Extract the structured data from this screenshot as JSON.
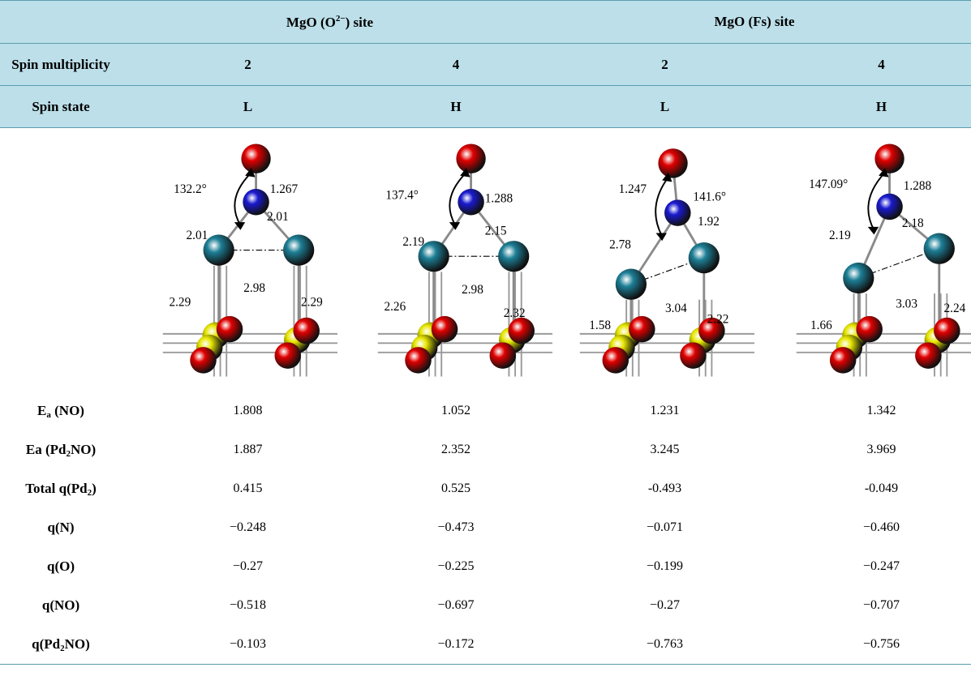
{
  "header": {
    "site_o2_prefix": "MgO (O",
    "site_o2_sup": "2−",
    "site_o2_suffix": ") site",
    "site_fs": "MgO (Fs) site",
    "spin_mult_label": "Spin multiplicity",
    "spin_mult": [
      "2",
      "4",
      "2",
      "4"
    ],
    "spin_state_label": "Spin state",
    "spin_state": [
      "L",
      "H",
      "L",
      "H"
    ]
  },
  "structures": [
    {
      "angle": "132.2°",
      "no_bond": "1.267",
      "pd_n_left": "2.01",
      "pd_n_right": "2.01",
      "pd_pd": "2.98",
      "pd_sub_left": "2.29",
      "pd_sub_right": "2.29"
    },
    {
      "angle": "137.4°",
      "no_bond": "1.288",
      "pd_n_left": "2.19",
      "pd_n_right": "2.15",
      "pd_pd": "2.98",
      "pd_sub_left": "2.26",
      "pd_sub_right": "2.32"
    },
    {
      "angle": "141.6°",
      "no_bond": "1.247",
      "pd_n_left": "2.78",
      "pd_n_right": "1.92",
      "pd_pd": "3.04",
      "pd_sub_left": "1.58",
      "pd_sub_right": "2.22"
    },
    {
      "angle": "147.09°",
      "no_bond": "1.288",
      "pd_n_left": "2.19",
      "pd_n_right": "2.18",
      "pd_pd": "3.03",
      "pd_sub_left": "1.66",
      "pd_sub_right": "2.24"
    }
  ],
  "rows": [
    {
      "label_main": "E",
      "label_sub": "a",
      "label_tail": " (NO)",
      "values": [
        "1.808",
        "1.052",
        "1.231",
        "1.342"
      ]
    },
    {
      "label_main": "Ea (Pd",
      "label_sub": "2",
      "label_tail": "NO)",
      "values": [
        "1.887",
        "2.352",
        "3.245",
        "3.969"
      ]
    },
    {
      "label_main": "Total q(Pd",
      "label_sub": "2",
      "label_tail": ")",
      "values": [
        "0.415",
        "0.525",
        "-0.493",
        "-0.049"
      ]
    },
    {
      "label_main": "q(N)",
      "label_sub": "",
      "label_tail": "",
      "values": [
        "−0.248",
        "−0.473",
        "−0.071",
        "−0.460"
      ]
    },
    {
      "label_main": "q(O)",
      "label_sub": "",
      "label_tail": "",
      "values": [
        "−0.27",
        "−0.225",
        "−0.199",
        "−0.247"
      ]
    },
    {
      "label_main": "q(NO)",
      "label_sub": "",
      "label_tail": "",
      "values": [
        "−0.518",
        "−0.697",
        "−0.27",
        "−0.707"
      ]
    },
    {
      "label_main": "q(Pd",
      "label_sub": "2",
      "label_tail": "NO)",
      "values": [
        "−0.103",
        "−0.172",
        "−0.763",
        "−0.756"
      ]
    }
  ],
  "colors": {
    "header_bg": "#bcdfe9",
    "oxygen": "#e00000",
    "nitrogen": "#1a1ad0",
    "palladium": "#1d7f96",
    "magnesium": "#e6e600"
  }
}
